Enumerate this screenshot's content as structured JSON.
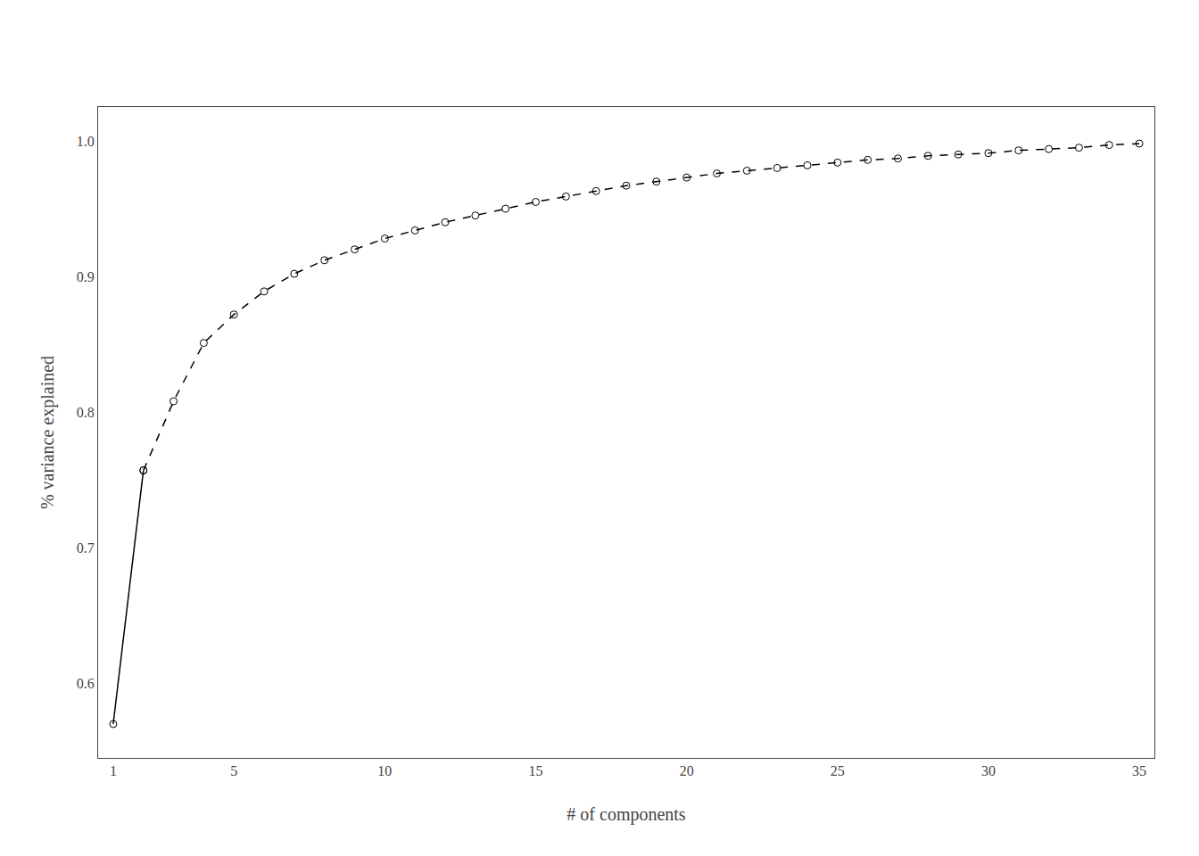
{
  "chart_data": {
    "type": "line",
    "xlabel": "# of components",
    "ylabel": "% variance explained",
    "x": [
      1,
      2,
      3,
      4,
      5,
      6,
      7,
      8,
      9,
      10,
      11,
      12,
      13,
      14,
      15,
      16,
      17,
      18,
      19,
      20,
      21,
      22,
      23,
      24,
      25,
      26,
      27,
      28,
      29,
      30,
      31,
      32,
      33,
      34,
      35
    ],
    "series": [
      {
        "color": "black",
        "line_style": "solid",
        "marker": "circle-open",
        "values": [
          0.57,
          0.757,
          null,
          null,
          null,
          null,
          null,
          null,
          null,
          null,
          null,
          null,
          null,
          null,
          null,
          null,
          null,
          null,
          null,
          null,
          null,
          null,
          null,
          null,
          null,
          null,
          null,
          null,
          null,
          null,
          null,
          null,
          null,
          null,
          null
        ]
      },
      {
        "color": "black",
        "line_style": "dashed",
        "marker": "circle-open",
        "values": [
          null,
          0.757,
          0.808,
          0.851,
          0.872,
          0.889,
          0.902,
          0.912,
          0.92,
          0.928,
          0.934,
          0.94,
          0.945,
          0.95,
          0.955,
          0.959,
          0.963,
          0.967,
          0.97,
          0.973,
          0.976,
          0.978,
          0.98,
          0.982,
          0.984,
          0.986,
          0.987,
          0.989,
          0.99,
          0.991,
          0.993,
          0.994,
          0.995,
          0.997,
          0.998
        ]
      }
    ],
    "xlim": [
      0.5,
      35.5
    ],
    "ylim": [
      0.545,
      1.025
    ],
    "xticks": [
      1,
      5,
      10,
      15,
      20,
      25,
      30,
      35
    ],
    "yticks": [
      0.6,
      0.7,
      0.8,
      0.9,
      {
        "value": 1.0,
        "label": "1.0"
      }
    ],
    "grid": false
  }
}
